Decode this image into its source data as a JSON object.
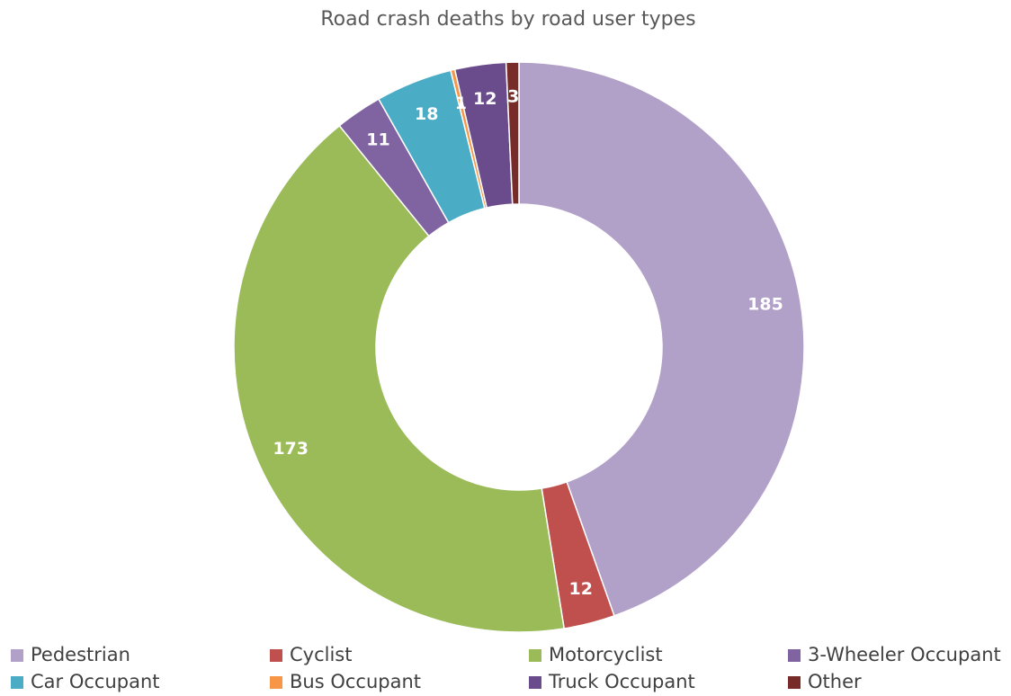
{
  "chart_data": {
    "type": "donut",
    "title": "Road crash deaths by road user types",
    "categories": [
      "Pedestrian",
      "Cyclist",
      "Motorcyclist",
      "3-Wheeler Occupant",
      "Car Occupant",
      "Bus Occupant",
      "Truck Occupant",
      "Other"
    ],
    "values": [
      185,
      12,
      173,
      11,
      18,
      1,
      12,
      3
    ],
    "colors": [
      "#b1a0c7",
      "#c0504d",
      "#9bbb59",
      "#8064a2",
      "#4bacc6",
      "#f79646",
      "#6a4c8c",
      "#772c2a"
    ],
    "legend": "bottom"
  }
}
